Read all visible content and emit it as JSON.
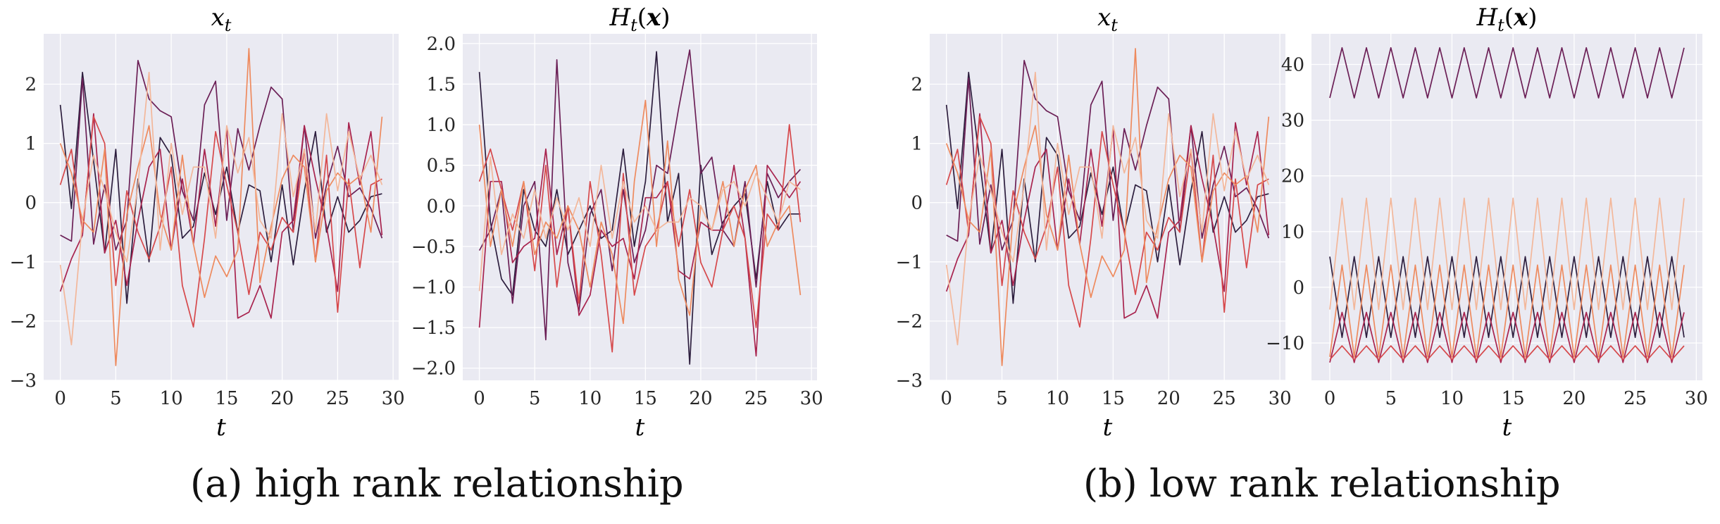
{
  "captions": {
    "left": "(a) high rank relationship",
    "right": "(b) low rank relationship"
  },
  "colors": {
    "plot_bg": "#eaeaf2",
    "grid": "#ffffff",
    "series": [
      "#2d1e3e",
      "#6b1f56",
      "#a8234e",
      "#d6484b",
      "#ee8a5e",
      "#f3b79a"
    ]
  },
  "chart_data": [
    {
      "type": "line",
      "title": "x_t",
      "xlabel": "t",
      "xlim": [
        -1.5,
        30.5
      ],
      "ylim": [
        -3.0,
        2.85
      ],
      "xticks": [
        "0",
        "5",
        "10",
        "15",
        "20",
        "25",
        "30"
      ],
      "yticks": [
        "−3",
        "−2",
        "−1",
        "0",
        "1",
        "2"
      ],
      "grid": true,
      "x": [
        0,
        1,
        2,
        3,
        4,
        5,
        6,
        7,
        8,
        9,
        10,
        11,
        12,
        13,
        14,
        15,
        16,
        17,
        18,
        19,
        20,
        21,
        22,
        23,
        24,
        25,
        26,
        27,
        28,
        29
      ],
      "series": [
        {
          "values": [
            1.65,
            -0.1,
            2.2,
            0.7,
            -0.85,
            0.9,
            -1.7,
            0.4,
            -1.0,
            1.1,
            0.8,
            -0.6,
            -0.4,
            0.5,
            -0.2,
            0.6,
            -0.5,
            0.3,
            0.2,
            -1.0,
            0.3,
            -1.05,
            0.2,
            1.2,
            -0.5,
            0.1,
            -0.5,
            -0.3,
            0.1,
            0.15
          ]
        },
        {
          "values": [
            -0.55,
            -0.65,
            2.1,
            -0.7,
            0.3,
            -0.8,
            -0.3,
            2.4,
            1.75,
            1.55,
            1.45,
            0.2,
            -0.3,
            1.65,
            2.05,
            -0.3,
            1.25,
            0.55,
            1.3,
            1.95,
            1.75,
            -0.5,
            1.3,
            -0.6,
            0.3,
            0.95,
            0.1,
            0.25,
            -0.1,
            -0.6
          ]
        },
        {
          "values": [
            -1.5,
            -0.95,
            -0.55,
            1.5,
            -0.85,
            -0.3,
            -1.4,
            -0.3,
            0.6,
            0.9,
            -0.8,
            0.4,
            -0.7,
            0.9,
            -0.4,
            1.25,
            -1.95,
            -1.85,
            -1.4,
            -1.95,
            -0.5,
            -0.3,
            1.3,
            0.4,
            -0.4,
            -1.5,
            1.35,
            0.3,
            1.2,
            -0.55
          ]
        },
        {
          "values": [
            0.3,
            0.9,
            -0.5,
            1.45,
            1.0,
            -1.4,
            0.2,
            -0.5,
            -0.95,
            -0.4,
            0.6,
            -1.4,
            -2.1,
            -0.6,
            1.2,
            0.3,
            -0.5,
            -1.55,
            -0.5,
            -0.8,
            -0.25,
            -0.5,
            0.9,
            -1.0,
            0.8,
            -1.85,
            0.4,
            -1.1,
            0.3,
            0.4
          ]
        },
        {
          "values": [
            1.0,
            0.5,
            -0.3,
            -0.5,
            0.9,
            -2.75,
            -0.2,
            0.6,
            1.3,
            -0.2,
            -0.8,
            0.8,
            -0.7,
            -1.6,
            -0.9,
            -1.25,
            -0.8,
            2.6,
            -1.35,
            -0.4,
            0.4,
            0.8,
            0.6,
            -1.0,
            0.2,
            0.5,
            0.3,
            0.45,
            -0.5,
            1.45
          ]
        },
        {
          "values": [
            -1.05,
            -2.4,
            -0.3,
            0.8,
            0.2,
            -0.5,
            -1.0,
            0.3,
            2.2,
            -0.8,
            1.0,
            -0.2,
            0.6,
            0.6,
            -0.6,
            1.3,
            0.5,
            1.1,
            -0.3,
            -0.6,
            1.5,
            0.1,
            0.9,
            -0.5,
            1.5,
            0.2,
            1.2,
            0.4,
            0.8,
            0.3
          ]
        }
      ]
    },
    {
      "type": "line",
      "title": "H_t(x)",
      "xlabel": "t",
      "xlim": [
        -1.5,
        30.5
      ],
      "ylim": [
        -2.15,
        2.12
      ],
      "xticks": [
        "0",
        "5",
        "10",
        "15",
        "20",
        "25",
        "30"
      ],
      "yticks": [
        "−2.0",
        "−1.5",
        "−1.0",
        "−0.5",
        "0.0",
        "0.5",
        "1.0",
        "1.5",
        "2.0"
      ],
      "grid": true,
      "x": [
        0,
        1,
        2,
        3,
        4,
        5,
        6,
        7,
        8,
        9,
        10,
        11,
        12,
        13,
        14,
        15,
        16,
        17,
        18,
        19,
        20,
        21,
        22,
        23,
        24,
        25,
        26,
        27,
        28,
        29
      ],
      "series": [
        {
          "values": [
            1.65,
            -0.2,
            -0.9,
            -1.1,
            0.2,
            -0.3,
            -0.5,
            0.2,
            -0.6,
            -0.3,
            0.0,
            -0.4,
            -0.3,
            0.7,
            -0.5,
            0.3,
            1.9,
            -0.2,
            0.4,
            -1.95,
            0.5,
            -0.6,
            -0.2,
            0.0,
            0.15,
            -0.9,
            0.3,
            -0.3,
            -0.1,
            -0.1
          ]
        },
        {
          "values": [
            -0.55,
            -0.3,
            0.2,
            -1.2,
            0.0,
            0.3,
            -1.65,
            1.8,
            -0.7,
            -1.3,
            -0.1,
            0.2,
            -0.8,
            0.2,
            -0.7,
            -0.3,
            0.5,
            0.4,
            1.2,
            1.92,
            0.4,
            0.6,
            -0.3,
            -0.5,
            0.3,
            -1.0,
            0.4,
            0.1,
            0.3,
            0.45
          ]
        },
        {
          "values": [
            -1.5,
            0.3,
            0.3,
            -0.7,
            -0.5,
            -0.4,
            0.7,
            -0.6,
            0.0,
            -1.35,
            -1.1,
            -0.3,
            -0.5,
            -0.4,
            -0.9,
            0.1,
            0.1,
            0.3,
            -0.8,
            -0.9,
            -0.2,
            -0.3,
            -0.3,
            0.5,
            -0.4,
            -1.85,
            0.5,
            0.3,
            0.1,
            0.3
          ]
        },
        {
          "values": [
            0.3,
            0.7,
            0.2,
            -0.3,
            0.3,
            -0.8,
            0.5,
            -1.0,
            0.0,
            -1.2,
            0.3,
            -0.6,
            -1.8,
            0.4,
            -1.1,
            -0.5,
            -0.3,
            0.3,
            -0.5,
            0.2,
            -0.7,
            -1.0,
            -0.3,
            0.0,
            -0.4,
            -1.5,
            -0.1,
            -0.3,
            1.0,
            -0.2
          ]
        },
        {
          "values": [
            1.0,
            -0.5,
            0.2,
            -0.5,
            0.3,
            -0.6,
            -0.2,
            -0.4,
            0.0,
            -0.3,
            -1.0,
            -0.2,
            -0.6,
            -1.45,
            0.3,
            1.3,
            -0.5,
            0.8,
            -0.9,
            -1.35,
            0.0,
            -0.3,
            0.3,
            -0.5,
            0.2,
            0.5,
            -0.5,
            -0.2,
            0.0,
            -1.1
          ]
        },
        {
          "values": [
            -1.05,
            0.6,
            -0.6,
            -0.1,
            -0.4,
            0.2,
            -0.4,
            0.1,
            -0.3,
            0.1,
            -0.5,
            0.5,
            -0.4,
            0.3,
            -0.2,
            0.0,
            -0.3,
            -0.2,
            -0.2,
            0.1,
            0.0,
            -0.3,
            0.2,
            0.3,
            0.0,
            0.4,
            0.1,
            -0.2,
            0.3,
            0.2
          ]
        }
      ]
    },
    {
      "type": "line",
      "title": "x_t",
      "xlabel": "t",
      "xlim": [
        -1.5,
        30.5
      ],
      "ylim": [
        -3.0,
        2.85
      ],
      "xticks": [
        "0",
        "5",
        "10",
        "15",
        "20",
        "25",
        "30"
      ],
      "yticks": [
        "−3",
        "−2",
        "−1",
        "0",
        "1",
        "2"
      ],
      "grid": true,
      "x": [
        0,
        1,
        2,
        3,
        4,
        5,
        6,
        7,
        8,
        9,
        10,
        11,
        12,
        13,
        14,
        15,
        16,
        17,
        18,
        19,
        20,
        21,
        22,
        23,
        24,
        25,
        26,
        27,
        28,
        29
      ],
      "series": [
        {
          "values": [
            1.65,
            -0.1,
            2.2,
            0.7,
            -0.85,
            0.9,
            -1.7,
            0.4,
            -1.0,
            1.1,
            0.8,
            -0.6,
            -0.4,
            0.5,
            -0.2,
            0.6,
            -0.5,
            0.3,
            0.2,
            -1.0,
            0.3,
            -1.05,
            0.2,
            1.2,
            -0.5,
            0.1,
            -0.5,
            -0.3,
            0.1,
            0.15
          ]
        },
        {
          "values": [
            -0.55,
            -0.65,
            2.1,
            -0.7,
            0.3,
            -0.8,
            -0.3,
            2.4,
            1.75,
            1.55,
            1.45,
            0.2,
            -0.3,
            1.65,
            2.05,
            -0.3,
            1.25,
            0.55,
            1.3,
            1.95,
            1.75,
            -0.5,
            1.3,
            -0.6,
            0.3,
            0.95,
            0.1,
            0.25,
            -0.1,
            -0.6
          ]
        },
        {
          "values": [
            -1.5,
            -0.95,
            -0.55,
            1.5,
            -0.85,
            -0.3,
            -1.4,
            -0.3,
            0.6,
            0.9,
            -0.8,
            0.4,
            -0.7,
            0.9,
            -0.4,
            1.25,
            -1.95,
            -1.85,
            -1.4,
            -1.95,
            -0.5,
            -0.3,
            1.3,
            0.4,
            -0.4,
            -1.5,
            1.35,
            0.3,
            1.2,
            -0.55
          ]
        },
        {
          "values": [
            0.3,
            0.9,
            -0.5,
            1.45,
            1.0,
            -1.4,
            0.2,
            -0.5,
            -0.95,
            -0.4,
            0.6,
            -1.4,
            -2.1,
            -0.6,
            1.2,
            0.3,
            -0.5,
            -1.55,
            -0.5,
            -0.8,
            -0.25,
            -0.5,
            0.9,
            -1.0,
            0.8,
            -1.85,
            0.4,
            -1.1,
            0.3,
            0.4
          ]
        },
        {
          "values": [
            1.0,
            0.5,
            -0.3,
            -0.5,
            0.9,
            -2.75,
            -0.2,
            0.6,
            1.3,
            -0.2,
            -0.8,
            0.8,
            -0.7,
            -1.6,
            -0.9,
            -1.25,
            -0.8,
            2.6,
            -1.35,
            -0.4,
            0.4,
            0.8,
            0.6,
            -1.0,
            0.2,
            0.5,
            0.3,
            0.45,
            -0.5,
            1.45
          ]
        },
        {
          "values": [
            -1.05,
            -2.4,
            -0.3,
            0.8,
            0.2,
            -0.5,
            -1.0,
            0.3,
            2.2,
            -0.8,
            1.0,
            -0.2,
            0.6,
            0.6,
            -0.6,
            1.3,
            0.5,
            1.1,
            -0.3,
            -0.6,
            1.5,
            0.1,
            0.9,
            -0.5,
            1.5,
            0.2,
            1.2,
            0.4,
            0.8,
            0.3
          ]
        }
      ]
    },
    {
      "type": "line",
      "title": "H_t(x)",
      "xlabel": "t",
      "xlim": [
        -1.5,
        30.5
      ],
      "ylim": [
        -16.7,
        45.5
      ],
      "xticks": [
        "0",
        "5",
        "10",
        "15",
        "20",
        "25",
        "30"
      ],
      "yticks": [
        "−10",
        "0",
        "10",
        "20",
        "30",
        "40"
      ],
      "grid": true,
      "x": [
        0,
        1,
        2,
        3,
        4,
        5,
        6,
        7,
        8,
        9,
        10,
        11,
        12,
        13,
        14,
        15,
        16,
        17,
        18,
        19,
        20,
        21,
        22,
        23,
        24,
        25,
        26,
        27,
        28,
        29
      ],
      "series": [
        {
          "values": [
            5.5,
            -9.0,
            5.5,
            -9.0,
            5.5,
            -9.0,
            5.5,
            -9.0,
            5.5,
            -9.0,
            5.5,
            -9.0,
            5.5,
            -9.0,
            5.5,
            -9.0,
            5.5,
            -9.0,
            5.5,
            -9.0,
            5.5,
            -9.0,
            5.5,
            -9.0,
            5.5,
            -9.0,
            5.5,
            -9.0,
            5.5,
            -9.0
          ]
        },
        {
          "values": [
            34,
            43,
            34,
            43,
            34,
            43,
            34,
            43,
            34,
            43,
            34,
            43,
            34,
            43,
            34,
            43,
            34,
            43,
            34,
            43,
            34,
            43,
            34,
            43,
            34,
            43,
            34,
            43,
            34,
            43
          ]
        },
        {
          "values": [
            -13.5,
            -4.5,
            -13.5,
            -4.5,
            -13.5,
            -4.5,
            -13.5,
            -4.5,
            -13.5,
            -4.5,
            -13.5,
            -4.5,
            -13.5,
            -4.5,
            -13.5,
            -4.5,
            -13.5,
            -4.5,
            -13.5,
            -4.5,
            -13.5,
            -4.5,
            -13.5,
            -4.5,
            -13.5,
            -4.5,
            -13.5,
            -4.5,
            -13.5,
            -4.5
          ]
        },
        {
          "values": [
            -13.0,
            -10.5,
            -13.0,
            -10.5,
            -13.0,
            -10.5,
            -13.0,
            -10.5,
            -13.0,
            -10.5,
            -13.0,
            -10.5,
            -13.0,
            -10.5,
            -13.0,
            -10.5,
            -13.0,
            -10.5,
            -13.0,
            -10.5,
            -13.0,
            -10.5,
            -13.0,
            -10.5,
            -13.0,
            -10.5,
            -13.0,
            -10.5,
            -13.0,
            -10.5
          ]
        },
        {
          "values": [
            -12.5,
            4.0,
            -12.5,
            4.0,
            -12.5,
            4.0,
            -12.5,
            4.0,
            -12.5,
            4.0,
            -12.5,
            4.0,
            -12.5,
            4.0,
            -12.5,
            4.0,
            -12.5,
            4.0,
            -12.5,
            4.0,
            -12.5,
            4.0,
            -12.5,
            4.0,
            -12.5,
            4.0,
            -12.5,
            4.0,
            -12.5,
            4.0
          ]
        },
        {
          "values": [
            -4.0,
            16.0,
            -4.0,
            16.0,
            -4.0,
            16.0,
            -4.0,
            16.0,
            -4.0,
            16.0,
            -4.0,
            16.0,
            -4.0,
            16.0,
            -4.0,
            16.0,
            -4.0,
            16.0,
            -4.0,
            16.0,
            -4.0,
            16.0,
            -4.0,
            16.0,
            -4.0,
            16.0,
            -4.0,
            16.0,
            -4.0,
            16.0
          ]
        }
      ]
    }
  ]
}
